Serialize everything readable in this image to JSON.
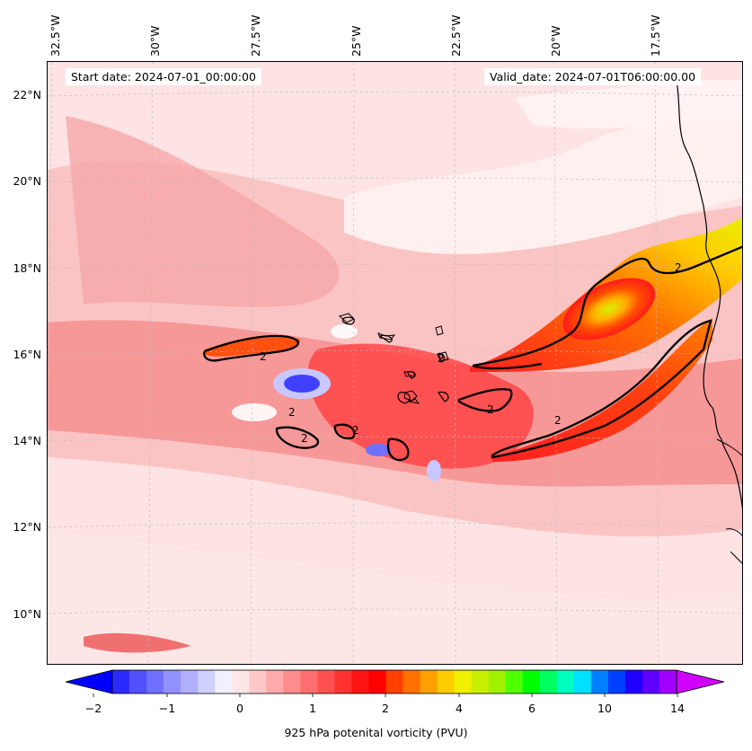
{
  "map": {
    "start_date": "Start date: 2024-07-01_00:00:00",
    "valid_date": "Valid_date: 2024-07-01T06:00:00.00",
    "longitude_labels": [
      "32.5°W",
      "30°W",
      "27.5°W",
      "25°W",
      "22.5°W",
      "20°W",
      "17.5°W"
    ],
    "latitude_labels": [
      "22°N",
      "20°N",
      "18°N",
      "16°N",
      "14°N",
      "12°N",
      "10°N"
    ],
    "contour_labels": [
      "2",
      "2",
      "2",
      "2",
      "2",
      "2",
      "2",
      "2"
    ],
    "colors": {
      "background": "#fde3e3",
      "light_red": "#fbb4b4",
      "red": "#f05050",
      "strong_red": "#ff1a1a",
      "orange": "#ff8c00",
      "yellow": "#f0f000",
      "blue": "#2a2aff",
      "light_blue": "#c8c8ff"
    }
  },
  "colorbar": {
    "label": "925 hPa potenital vorticity (PVU)",
    "tick_labels": [
      "−2",
      "−1",
      "0",
      "1",
      "2",
      "4",
      "6",
      "10",
      "14"
    ],
    "colors": [
      "#0000ff",
      "#2a2aff",
      "#5050ff",
      "#7070ff",
      "#9090ff",
      "#b0b0ff",
      "#d0d0ff",
      "#f0f0ff",
      "#ffe6e6",
      "#ffc8c8",
      "#ffaaaa",
      "#ff8c8c",
      "#ff6e6e",
      "#ff5050",
      "#ff3232",
      "#ff1414",
      "#ff0000",
      "#ff4000",
      "#ff7000",
      "#ffa000",
      "#ffcc00",
      "#f0f000",
      "#c8f000",
      "#a0f000",
      "#50ff00",
      "#00ff00",
      "#00ff60",
      "#00ffc0",
      "#00e0ff",
      "#0080ff",
      "#0040ff",
      "#2000ff",
      "#6000ff",
      "#a000ff",
      "#d000ff"
    ]
  }
}
